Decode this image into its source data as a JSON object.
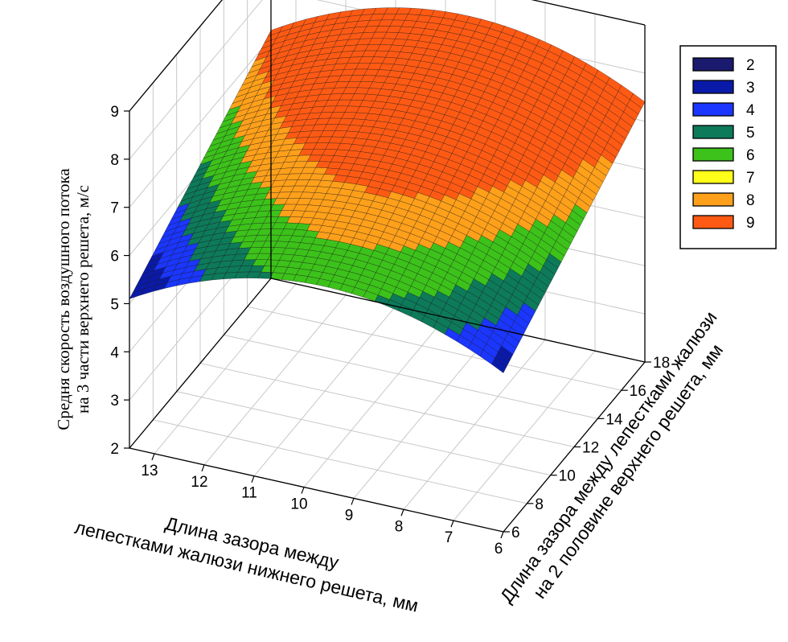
{
  "chart_data": {
    "type": "surface",
    "title": "",
    "xlabel": "Длина зазора между лепестками жалюзи нижнего решета, мм",
    "xlabel_lines": [
      "Длина зазора между",
      "лепестками жалюзи нижнего решета, мм"
    ],
    "ylabel": "Длина зазора между лепестками жалюзи на 2 половине верхнего решета, мм",
    "ylabel_lines": [
      "Длина зазора между лепестками жалюзи",
      "на 2 половине верхнего решета, мм"
    ],
    "zlabel": "Средня скорость воздушного потока на 3 части верхнего решета, м/с",
    "zlabel_lines": [
      "Средня скорость воздушного потока",
      "на 3 части верхнего решета, м/с"
    ],
    "x_ticks": [
      "13",
      "12",
      "11",
      "10",
      "9",
      "8",
      "7",
      "6"
    ],
    "y_ticks": [
      "6",
      "8",
      "10",
      "12",
      "14",
      "16",
      "18"
    ],
    "z_ticks": [
      "2",
      "3",
      "4",
      "5",
      "6",
      "7",
      "8",
      "9"
    ],
    "xlim": [
      6,
      13.5
    ],
    "ylim": [
      6,
      18
    ],
    "zlim": [
      2,
      9
    ],
    "grid": true,
    "legend_position": "top-right",
    "legend": [
      {
        "label": "2",
        "color": "#1a1a6e"
      },
      {
        "label": "3",
        "color": "#0a1aa8"
      },
      {
        "label": "4",
        "color": "#1a36ff"
      },
      {
        "label": "5",
        "color": "#0d7a5a"
      },
      {
        "label": "6",
        "color": "#3cc21a"
      },
      {
        "label": "7",
        "color": "#ffff1a"
      },
      {
        "label": "8",
        "color": "#ffa01a"
      },
      {
        "label": "9",
        "color": "#ff5a14"
      }
    ],
    "surface_points": [
      {
        "x": 13.5,
        "y": 6,
        "z": 5.1
      },
      {
        "x": 10.0,
        "y": 6,
        "z": 6.25
      },
      {
        "x": 6.0,
        "y": 6,
        "z": 5.3
      },
      {
        "x": 13.5,
        "y": 18,
        "z": 7.15
      },
      {
        "x": 10.0,
        "y": 18,
        "z": 8.35
      },
      {
        "x": 6.0,
        "y": 18,
        "z": 7.4
      }
    ]
  }
}
